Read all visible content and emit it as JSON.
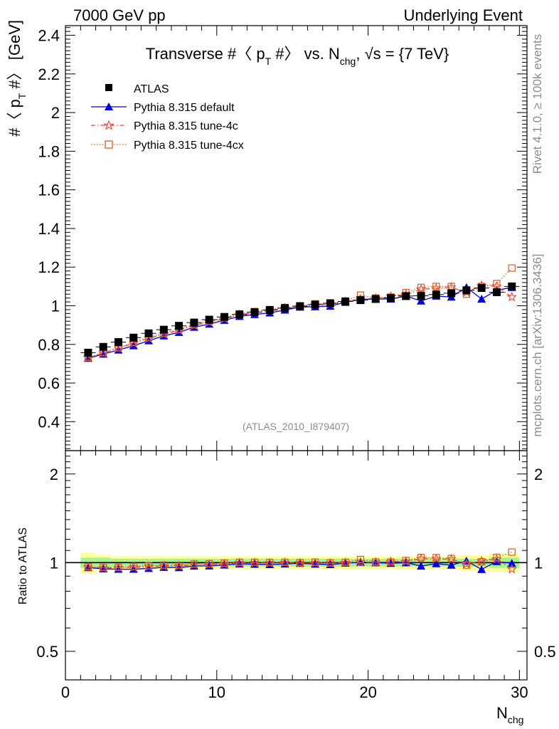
{
  "header": {
    "left": "7000 GeV pp",
    "right": "Underlying Event"
  },
  "side_labels": {
    "rivet": "Rivet 4.1.0, ≥ 100k events",
    "mcplots": "mcplots.cern.ch [arXiv:1306.3436]"
  },
  "chart_data": {
    "type": "scatter",
    "title_parts": {
      "a": "Transverse #〈 p",
      "a_sub": "T",
      "b": " #〉 vs. N",
      "b_sub": "chg",
      "c": ", √s = {7 TeV}"
    },
    "ylabel_parts": {
      "a": "#〈 p",
      "sub": "T",
      "b": " #〉 [GeV]"
    },
    "xlabel_parts": {
      "main": "N",
      "sub": "chg"
    },
    "ratio_ylabel": "Ratio to ATLAS",
    "watermark": "(ATLAS_2010_I879407)",
    "xlim": [
      0,
      30.5
    ],
    "ylim": [
      0.25,
      2.45
    ],
    "ratio_ylim": [
      0.4,
      2.4
    ],
    "x_ticks": [
      "0",
      "10",
      "20",
      "30"
    ],
    "y_ticks": [
      "0.4",
      "0.6",
      "0.8",
      "1",
      "1.2",
      "1.4",
      "1.6",
      "1.8",
      "2",
      "2.2",
      "2.4"
    ],
    "ratio_ticks": [
      "0.5",
      "1",
      "2"
    ],
    "x": [
      1.5,
      2.5,
      3.5,
      4.5,
      5.5,
      6.5,
      7.5,
      8.5,
      9.5,
      10.5,
      11.5,
      12.5,
      13.5,
      14.5,
      15.5,
      16.5,
      17.5,
      18.5,
      19.5,
      20.5,
      21.5,
      22.5,
      23.5,
      24.5,
      25.5,
      26.5,
      27.5,
      28.5,
      29.5
    ],
    "band_inner": [
      0.04,
      0.04,
      0.03,
      0.03,
      0.03,
      0.03,
      0.03,
      0.03,
      0.03,
      0.03,
      0.03,
      0.03,
      0.03,
      0.03,
      0.03,
      0.03,
      0.03,
      0.03,
      0.03,
      0.03,
      0.03,
      0.03,
      0.03,
      0.03,
      0.03,
      0.03,
      0.03,
      0.04,
      0.04
    ],
    "band_outer": [
      0.08,
      0.06,
      0.05,
      0.05,
      0.05,
      0.05,
      0.05,
      0.05,
      0.05,
      0.05,
      0.05,
      0.05,
      0.05,
      0.05,
      0.05,
      0.05,
      0.05,
      0.05,
      0.05,
      0.05,
      0.05,
      0.05,
      0.05,
      0.05,
      0.05,
      0.06,
      0.06,
      0.07,
      0.07
    ],
    "series": [
      {
        "name": "ATLAS",
        "color": "#000000",
        "marker": "square",
        "values": [
          0.757,
          0.787,
          0.812,
          0.835,
          0.857,
          0.876,
          0.896,
          0.913,
          0.928,
          0.942,
          0.955,
          0.967,
          0.978,
          0.988,
          0.998,
          1.006,
          1.013,
          1.022,
          1.029,
          1.035,
          1.04,
          1.05,
          1.052,
          1.058,
          1.065,
          1.08,
          1.092,
          1.07,
          1.1
        ],
        "ratio": []
      },
      {
        "name": "Pythia 8.315 default",
        "color": "#0000dd",
        "marker": "triangle",
        "line": "solid",
        "values": [
          0.728,
          0.75,
          0.771,
          0.793,
          0.819,
          0.844,
          0.862,
          0.889,
          0.905,
          0.925,
          0.945,
          0.955,
          0.963,
          0.978,
          0.993,
          0.995,
          0.998,
          1.018,
          1.033,
          1.035,
          1.035,
          1.05,
          1.025,
          1.05,
          1.045,
          1.095,
          1.035,
          1.08,
          1.095
        ],
        "ratio": [
          0.962,
          0.953,
          0.95,
          0.95,
          0.956,
          0.964,
          0.962,
          0.974,
          0.975,
          0.982,
          0.99,
          0.988,
          0.985,
          0.99,
          0.995,
          0.989,
          0.985,
          0.996,
          1.004,
          1.0,
          0.995,
          1.0,
          0.974,
          0.992,
          0.981,
          1.014,
          0.948,
          1.009,
          0.995
        ]
      },
      {
        "name": "Pythia 8.315 tune-4c",
        "color": "#e8413f",
        "marker": "star",
        "line": "dashdot",
        "values": [
          0.731,
          0.755,
          0.781,
          0.806,
          0.831,
          0.853,
          0.873,
          0.898,
          0.915,
          0.933,
          0.953,
          0.965,
          0.975,
          0.988,
          0.995,
          1.003,
          1.008,
          1.021,
          1.033,
          1.038,
          1.048,
          1.058,
          1.085,
          1.09,
          1.095,
          1.07,
          1.105,
          1.1,
          1.045
        ],
        "ratio": [
          0.966,
          0.959,
          0.962,
          0.965,
          0.97,
          0.974,
          0.974,
          0.984,
          0.986,
          0.99,
          0.998,
          0.998,
          0.997,
          1.0,
          0.997,
          0.997,
          0.995,
          0.999,
          1.004,
          1.003,
          1.008,
          1.008,
          1.031,
          1.03,
          1.028,
          0.991,
          1.012,
          1.028,
          0.95
        ]
      },
      {
        "name": "Pythia 8.315 tune-4cx",
        "color": "#d65f1f",
        "marker": "opensquare",
        "line": "dotted",
        "values": [
          0.733,
          0.757,
          0.783,
          0.81,
          0.836,
          0.859,
          0.878,
          0.903,
          0.92,
          0.938,
          0.958,
          0.97,
          0.98,
          0.991,
          0.998,
          1.01,
          1.011,
          1.025,
          1.055,
          1.04,
          1.045,
          1.068,
          1.095,
          1.1,
          1.1,
          1.06,
          1.1,
          1.115,
          1.195
        ],
        "ratio": [
          0.968,
          0.962,
          0.964,
          0.97,
          0.976,
          0.981,
          0.98,
          0.989,
          0.991,
          0.996,
          1.003,
          1.003,
          1.002,
          1.003,
          1.0,
          1.004,
          0.998,
          1.003,
          1.025,
          1.005,
          1.005,
          1.017,
          1.041,
          1.04,
          1.033,
          0.981,
          1.007,
          1.042,
          1.086
        ]
      }
    ]
  }
}
